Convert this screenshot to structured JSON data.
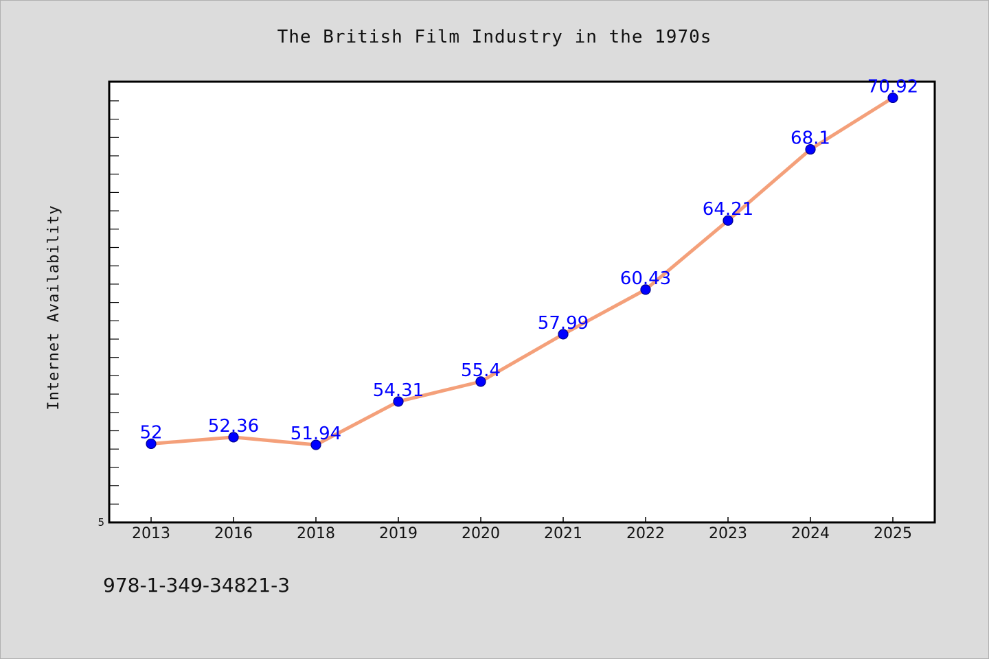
{
  "chart_data": {
    "type": "line",
    "title": "The British Film Industry in the 1970s",
    "xlabel": "",
    "ylabel": "Internet Availability",
    "categories": [
      "2013",
      "2016",
      "2018",
      "2019",
      "2020",
      "2021",
      "2022",
      "2023",
      "2024",
      "2025"
    ],
    "series": [
      {
        "values": [
          52,
          52.36,
          51.94,
          54.31,
          55.4,
          57.99,
          60.43,
          64.21,
          68.1,
          70.92
        ],
        "data_labels": [
          "52",
          "52.36",
          "51.94",
          "54.31",
          "55.4",
          "57.99",
          "60.43",
          "64.21",
          "68.1",
          "70.92"
        ]
      }
    ],
    "ylim": [
      47.7,
      71.8
    ],
    "y_tick_labels": [
      "5"
    ],
    "grid": false,
    "legend": "none",
    "colors": {
      "line": "#f4a07a",
      "marker": "#0000ff",
      "data_label": "#0000ff",
      "background": "#dcdcdc",
      "plot_area": "#ffffff"
    }
  },
  "footnote": "978-1-349-34821-3"
}
